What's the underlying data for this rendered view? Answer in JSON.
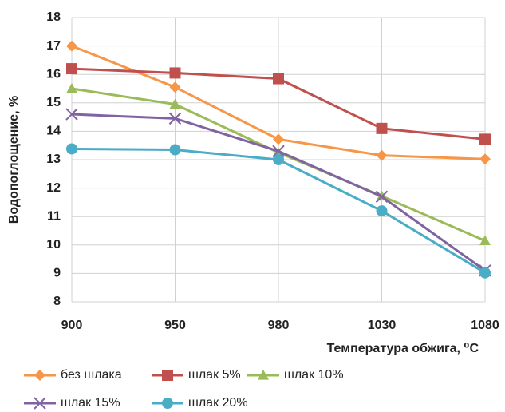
{
  "chart_data": {
    "type": "line",
    "y_label": "Водопоглощение, %",
    "x_label": "Температура обжига, ⁰С",
    "categories": [
      "900",
      "950",
      "980",
      "1030",
      "1080"
    ],
    "ylim": [
      8,
      18
    ],
    "yticks": [
      8,
      9,
      10,
      11,
      12,
      13,
      14,
      15,
      16,
      17,
      18
    ],
    "grid": true,
    "series": [
      {
        "name": "без шлака",
        "color": "#f79646",
        "marker": "diamond",
        "values": [
          17.0,
          15.55,
          13.72,
          13.15,
          13.02
        ]
      },
      {
        "name": "шлак 5%",
        "color": "#c0504d",
        "marker": "square",
        "values": [
          16.2,
          16.05,
          15.85,
          14.1,
          13.72
        ]
      },
      {
        "name": "шлак 10%",
        "color": "#9bbb59",
        "marker": "triangle",
        "values": [
          15.5,
          14.95,
          13.25,
          11.72,
          10.15
        ]
      },
      {
        "name": "шлак 15%",
        "color": "#8064a2",
        "marker": "x",
        "values": [
          14.6,
          14.45,
          13.3,
          11.7,
          9.1
        ]
      },
      {
        "name": "шлак 20%",
        "color": "#4bacc6",
        "marker": "circle",
        "values": [
          13.38,
          13.35,
          13.0,
          11.2,
          9.02
        ]
      }
    ]
  }
}
